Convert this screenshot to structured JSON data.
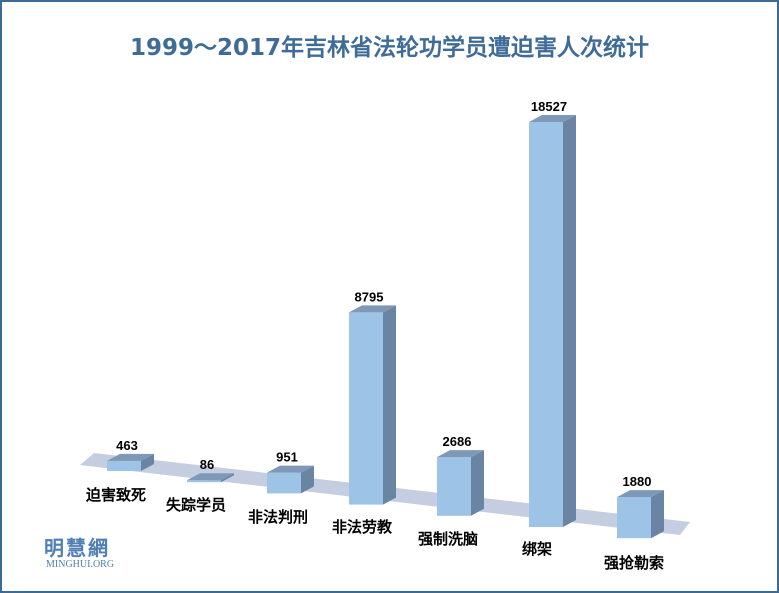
{
  "chart_data": {
    "type": "bar",
    "title": "1999～2017年吉林省法轮功学员遭迫害人次统计",
    "categories": [
      "迫害致死",
      "失踪学员",
      "非法判刑",
      "非法劳教",
      "强制洗脑",
      "绑架",
      "强抢勒索"
    ],
    "values": [
      463,
      86,
      951,
      8795,
      2686,
      18527,
      1880
    ],
    "value_labels": [
      "463",
      "86",
      "951",
      "8795",
      "2686",
      "18527",
      "1880"
    ],
    "xlabel": "",
    "ylabel": "",
    "ylim": [
      0,
      20000
    ],
    "grid": false,
    "legend": "none",
    "colors": {
      "front": "#9dc3e6",
      "side": "#6a84a3",
      "top": "#7f98b8",
      "floor": "#c5cde0",
      "title": "#3f6c97"
    }
  },
  "watermark": {
    "logo": "明慧網",
    "site": "MINGHUI.ORG"
  }
}
